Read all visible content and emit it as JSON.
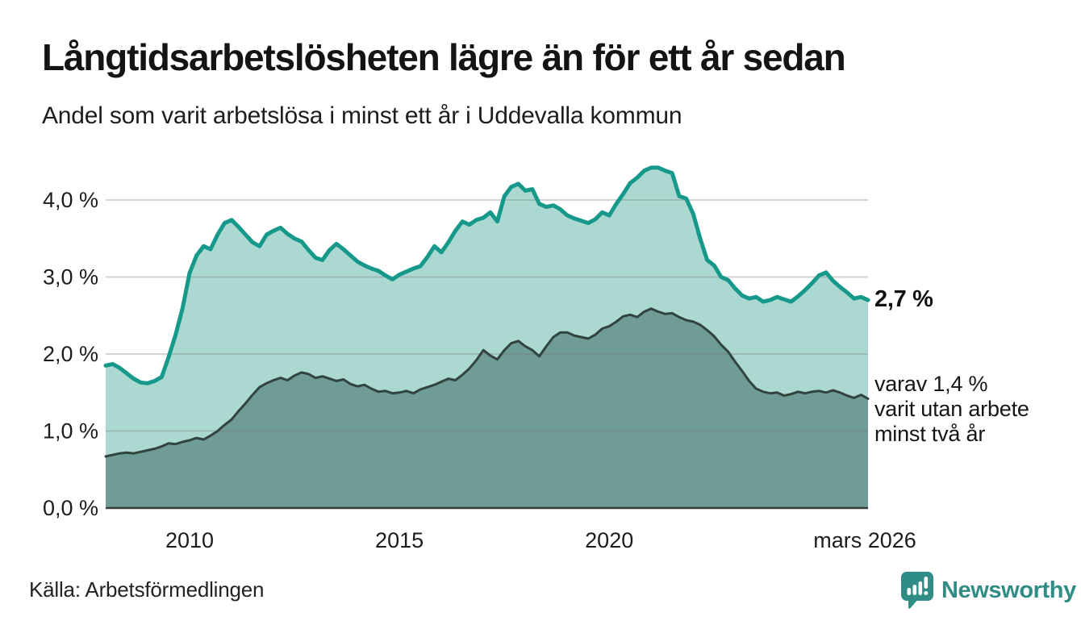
{
  "header": {
    "title": "Långtidsarbetslösheten lägre än för ett år sedan",
    "subtitle": "Andel som varit arbetslösa i minst ett år i Uddevalla kommun"
  },
  "chart_data": {
    "type": "area",
    "title": "Långtidsarbetslösheten lägre än för ett år sedan",
    "subtitle": "Andel som varit arbetslösa i minst ett år i Uddevalla kommun",
    "unit": "%",
    "x_domain": [
      2008.0,
      2026.1667
    ],
    "x_step": 0.1666667,
    "ylim": [
      0,
      4.6
    ],
    "grid": "horizontal",
    "y_ticks": [
      {
        "value": 4.0,
        "label": "4,0 %"
      },
      {
        "value": 3.0,
        "label": "3,0 %"
      },
      {
        "value": 2.0,
        "label": "2,0 %"
      },
      {
        "value": 1.0,
        "label": "1,0 %"
      },
      {
        "value": 0.0,
        "label": "0,0 %"
      }
    ],
    "x_ticks": [
      {
        "year": 2010,
        "label": "2010"
      },
      {
        "year": 2015,
        "label": "2015"
      },
      {
        "year": 2020,
        "label": "2020"
      }
    ],
    "x_end_tick": {
      "year": 2026.08,
      "label": "mars 2026"
    },
    "series": [
      {
        "id": "total",
        "name": "Andel som varit arbetslösa i minst ett år",
        "line_color": "#16998a",
        "fill_color": "#abd9d2",
        "line_width": 5,
        "end_value_label": "2,7 %",
        "values": [
          1.85,
          1.87,
          1.82,
          1.75,
          1.68,
          1.63,
          1.62,
          1.65,
          1.7,
          1.96,
          2.25,
          2.6,
          3.05,
          3.28,
          3.4,
          3.36,
          3.55,
          3.7,
          3.74,
          3.65,
          3.55,
          3.45,
          3.4,
          3.55,
          3.6,
          3.64,
          3.56,
          3.5,
          3.46,
          3.35,
          3.25,
          3.22,
          3.35,
          3.43,
          3.36,
          3.28,
          3.2,
          3.15,
          3.11,
          3.08,
          3.02,
          2.97,
          3.03,
          3.07,
          3.11,
          3.14,
          3.26,
          3.4,
          3.32,
          3.45,
          3.6,
          3.72,
          3.68,
          3.74,
          3.77,
          3.84,
          3.72,
          4.05,
          4.17,
          4.21,
          4.12,
          4.14,
          3.95,
          3.91,
          3.93,
          3.88,
          3.8,
          3.76,
          3.73,
          3.7,
          3.75,
          3.84,
          3.8,
          3.95,
          4.08,
          4.22,
          4.29,
          4.38,
          4.42,
          4.42,
          4.38,
          4.35,
          4.05,
          4.02,
          3.82,
          3.5,
          3.22,
          3.15,
          3.0,
          2.96,
          2.85,
          2.76,
          2.72,
          2.74,
          2.68,
          2.7,
          2.74,
          2.71,
          2.68,
          2.75,
          2.83,
          2.92,
          3.02,
          3.06,
          2.95,
          2.87,
          2.8,
          2.72,
          2.74,
          2.7
        ]
      },
      {
        "id": "two-years",
        "name": "varav utan arbete minst två år",
        "line_color": "#31443f",
        "fill_color": "#6f9c96",
        "line_width": 3,
        "end_value_label": "1,4 %",
        "values": [
          0.67,
          0.69,
          0.71,
          0.72,
          0.71,
          0.73,
          0.75,
          0.77,
          0.8,
          0.84,
          0.83,
          0.86,
          0.88,
          0.91,
          0.89,
          0.94,
          1.0,
          1.08,
          1.15,
          1.26,
          1.36,
          1.47,
          1.57,
          1.62,
          1.66,
          1.69,
          1.66,
          1.72,
          1.76,
          1.74,
          1.69,
          1.71,
          1.68,
          1.65,
          1.67,
          1.61,
          1.58,
          1.6,
          1.55,
          1.51,
          1.52,
          1.49,
          1.5,
          1.52,
          1.49,
          1.54,
          1.57,
          1.6,
          1.64,
          1.68,
          1.66,
          1.73,
          1.81,
          1.92,
          2.05,
          1.98,
          1.93,
          2.05,
          2.14,
          2.17,
          2.1,
          2.05,
          1.97,
          2.1,
          2.22,
          2.28,
          2.28,
          2.24,
          2.22,
          2.2,
          2.25,
          2.33,
          2.36,
          2.42,
          2.49,
          2.51,
          2.48,
          2.55,
          2.59,
          2.55,
          2.52,
          2.53,
          2.48,
          2.44,
          2.42,
          2.38,
          2.31,
          2.23,
          2.12,
          2.03,
          1.9,
          1.78,
          1.65,
          1.55,
          1.51,
          1.49,
          1.5,
          1.46,
          1.48,
          1.51,
          1.49,
          1.51,
          1.52,
          1.5,
          1.53,
          1.5,
          1.46,
          1.43,
          1.47,
          1.42
        ]
      }
    ]
  },
  "annotations": {
    "latest_total": "2,7 %",
    "latest_two_years_lines": [
      "varav 1,4 %",
      "varit utan arbete",
      "minst två år"
    ]
  },
  "footer": {
    "source": "Källa: Arbetsförmedlingen",
    "brand": "Newsworthy"
  },
  "colors": {
    "line_total": "#16998a",
    "fill_total": "#abd9d2",
    "line_two_years": "#31443f",
    "fill_two_years": "#6f9c96",
    "axis": "#3b3b3b",
    "grid": "rgba(120,120,120,0.32)",
    "text": "#1d1d1d",
    "brand_teal": "#2f8d86"
  }
}
